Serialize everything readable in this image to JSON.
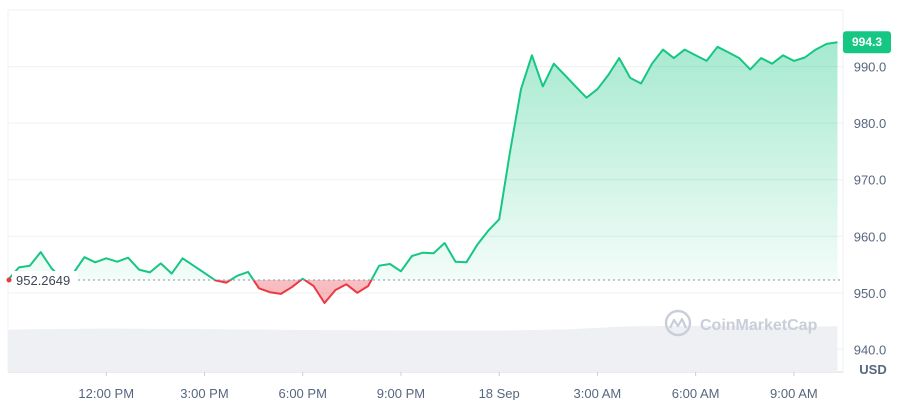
{
  "chart_data": {
    "type": "line",
    "title": "",
    "xlabel": "",
    "ylabel": "",
    "unit_label": "USD",
    "ylim": [
      936,
      1000
    ],
    "y_ticks": [
      940,
      950,
      960,
      970,
      980,
      990
    ],
    "y_tick_labels": [
      "940.0",
      "950.0",
      "960.0",
      "970.0",
      "980.0",
      "990.0"
    ],
    "x_range": [
      "2024-09-17T09:00",
      "2024-09-18T10:30"
    ],
    "x_ticks": [
      {
        "t": "2024-09-17T12:00",
        "label": "12:00 PM"
      },
      {
        "t": "2024-09-17T15:00",
        "label": "3:00 PM"
      },
      {
        "t": "2024-09-17T18:00",
        "label": "6:00 PM"
      },
      {
        "t": "2024-09-17T21:00",
        "label": "9:00 PM"
      },
      {
        "t": "2024-09-18T00:00",
        "label": "18 Sep"
      },
      {
        "t": "2024-09-18T03:00",
        "label": "3:00 AM"
      },
      {
        "t": "2024-09-18T06:00",
        "label": "6:00 AM"
      },
      {
        "t": "2024-09-18T09:00",
        "label": "9:00 AM"
      }
    ],
    "baseline": {
      "value": 952.2649,
      "label": "952.2649"
    },
    "current": {
      "value": 994.3,
      "label": "994.3"
    },
    "watermark": "CoinMarketCap",
    "colors": {
      "up": "#16c784",
      "down": "#ea3943",
      "grid": "#eef0f3",
      "text": "#58667e",
      "baseline": "#8a94a6"
    },
    "grid": true,
    "series": [
      {
        "x": [
          "2024-09-17T09:00",
          "2024-09-17T09:20",
          "2024-09-17T09:40",
          "2024-09-17T10:00",
          "2024-09-17T10:20",
          "2024-09-17T10:40",
          "2024-09-17T11:00",
          "2024-09-17T11:20",
          "2024-09-17T11:40",
          "2024-09-17T12:00",
          "2024-09-17T12:20",
          "2024-09-17T12:40",
          "2024-09-17T13:00",
          "2024-09-17T13:20",
          "2024-09-17T13:40",
          "2024-09-17T14:00",
          "2024-09-17T14:20",
          "2024-09-17T14:40",
          "2024-09-17T15:00",
          "2024-09-17T15:20",
          "2024-09-17T15:40",
          "2024-09-17T16:00",
          "2024-09-17T16:20",
          "2024-09-17T16:40",
          "2024-09-17T17:00",
          "2024-09-17T17:20",
          "2024-09-17T17:40",
          "2024-09-17T18:00",
          "2024-09-17T18:20",
          "2024-09-17T18:40",
          "2024-09-17T19:00",
          "2024-09-17T19:20",
          "2024-09-17T19:40",
          "2024-09-17T20:00",
          "2024-09-17T20:20",
          "2024-09-17T20:40",
          "2024-09-17T21:00",
          "2024-09-17T21:20",
          "2024-09-17T21:40",
          "2024-09-17T22:00",
          "2024-09-17T22:20",
          "2024-09-17T22:40",
          "2024-09-17T23:00",
          "2024-09-17T23:20",
          "2024-09-17T23:40",
          "2024-09-18T00:00",
          "2024-09-18T00:20",
          "2024-09-18T00:40",
          "2024-09-18T01:00",
          "2024-09-18T01:20",
          "2024-09-18T01:40",
          "2024-09-18T02:00",
          "2024-09-18T02:20",
          "2024-09-18T02:40",
          "2024-09-18T03:00",
          "2024-09-18T03:20",
          "2024-09-18T03:40",
          "2024-09-18T04:00",
          "2024-09-18T04:20",
          "2024-09-18T04:40",
          "2024-09-18T05:00",
          "2024-09-18T05:20",
          "2024-09-18T05:40",
          "2024-09-18T06:00",
          "2024-09-18T06:20",
          "2024-09-18T06:40",
          "2024-09-18T07:00",
          "2024-09-18T07:20",
          "2024-09-18T07:40",
          "2024-09-18T08:00",
          "2024-09-18T08:20",
          "2024-09-18T08:40",
          "2024-09-18T09:00",
          "2024-09-18T09:20",
          "2024-09-18T09:40",
          "2024-09-18T10:00",
          "2024-09-18T10:20"
        ],
        "y": [
          952.3,
          954.5,
          954.8,
          957.2,
          954.3,
          952.4,
          953.5,
          956.3,
          955.4,
          956.1,
          955.5,
          956.2,
          954.1,
          953.6,
          955.2,
          953.4,
          956.1,
          954.8,
          953.5,
          952.2,
          951.8,
          953.0,
          953.7,
          950.8,
          950.1,
          949.8,
          951.0,
          952.5,
          951.2,
          948.2,
          950.5,
          951.5,
          950.0,
          951.2,
          954.8,
          955.1,
          953.8,
          956.5,
          957.1,
          957.0,
          958.8,
          955.5,
          955.4,
          958.5,
          961.0,
          963.0,
          975.0,
          986.0,
          992.0,
          986.5,
          990.5,
          988.5,
          986.5,
          984.5,
          986.0,
          988.5,
          991.5,
          988.0,
          987.0,
          990.5,
          993.0,
          991.5,
          993.0,
          992.0,
          991.0,
          993.5,
          992.5,
          991.5,
          989.5,
          991.5,
          990.5,
          992.0,
          991.0,
          991.6,
          993.0,
          994.0,
          994.3
        ]
      }
    ],
    "volume": {
      "x": [
        "2024-09-17T09:00",
        "2024-09-17T12:00",
        "2024-09-17T15:00",
        "2024-09-17T18:00",
        "2024-09-17T21:00",
        "2024-09-18T00:00",
        "2024-09-18T02:00",
        "2024-09-18T04:00",
        "2024-09-18T06:00",
        "2024-09-18T09:00",
        "2024-09-18T10:20"
      ],
      "level": [
        0.48,
        0.5,
        0.49,
        0.47,
        0.46,
        0.46,
        0.48,
        0.55,
        0.56,
        0.54,
        0.55
      ]
    }
  }
}
